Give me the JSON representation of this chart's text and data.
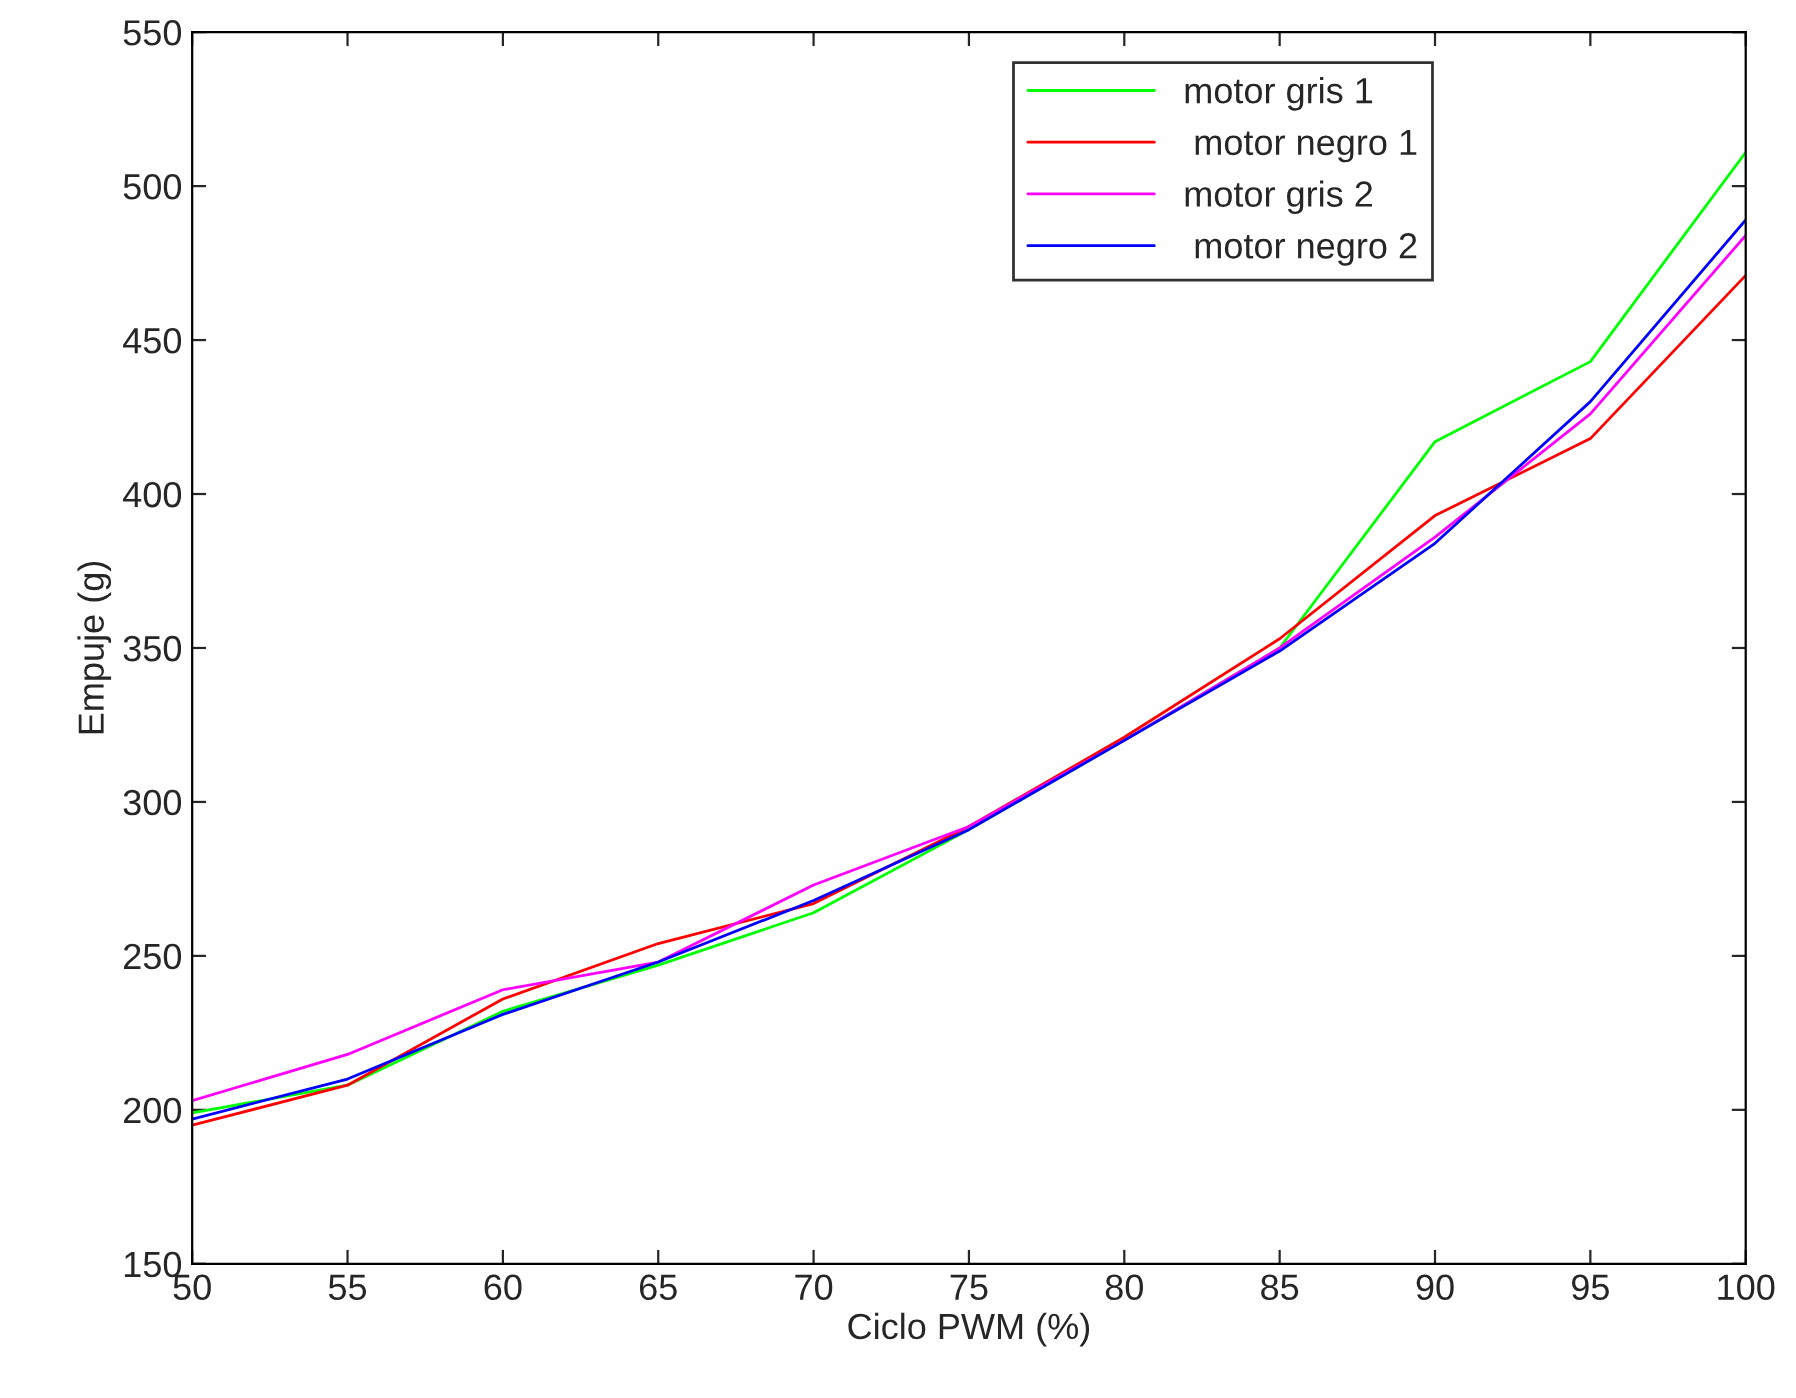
{
  "chart_data": {
    "type": "line",
    "xlabel": "Ciclo PWM (%)",
    "ylabel": "Empuje (g)",
    "x": [
      50,
      55,
      60,
      65,
      70,
      75,
      80,
      85,
      90,
      95,
      100
    ],
    "series": [
      {
        "name": "motor gris 1",
        "color": "#00ff00",
        "values": [
          199,
          208,
          232,
          247,
          264,
          291,
          320,
          350,
          417,
          443,
          511
        ]
      },
      {
        "name": " motor negro 1",
        "color": "#ff0000",
        "values": [
          195,
          208,
          236,
          254,
          267,
          292,
          321,
          353,
          393,
          418,
          471
        ]
      },
      {
        "name": "motor gris 2",
        "color": "#ff00ff",
        "values": [
          203,
          218,
          239,
          248,
          273,
          292,
          320,
          350,
          386,
          426,
          484
        ]
      },
      {
        "name": " motor negro 2",
        "color": "#0000ff",
        "values": [
          197,
          210,
          231,
          248,
          268,
          291,
          320,
          349,
          384,
          430,
          489
        ]
      }
    ],
    "xlim": [
      50,
      100
    ],
    "xticks": [
      50,
      55,
      60,
      65,
      70,
      75,
      80,
      85,
      90,
      95,
      100
    ],
    "ylim": [
      150,
      550
    ],
    "yticks": [
      150,
      200,
      250,
      300,
      350,
      400,
      450,
      500,
      550
    ],
    "legend": "top right",
    "grid": false,
    "marker": "none",
    "line_style": "solid"
  }
}
